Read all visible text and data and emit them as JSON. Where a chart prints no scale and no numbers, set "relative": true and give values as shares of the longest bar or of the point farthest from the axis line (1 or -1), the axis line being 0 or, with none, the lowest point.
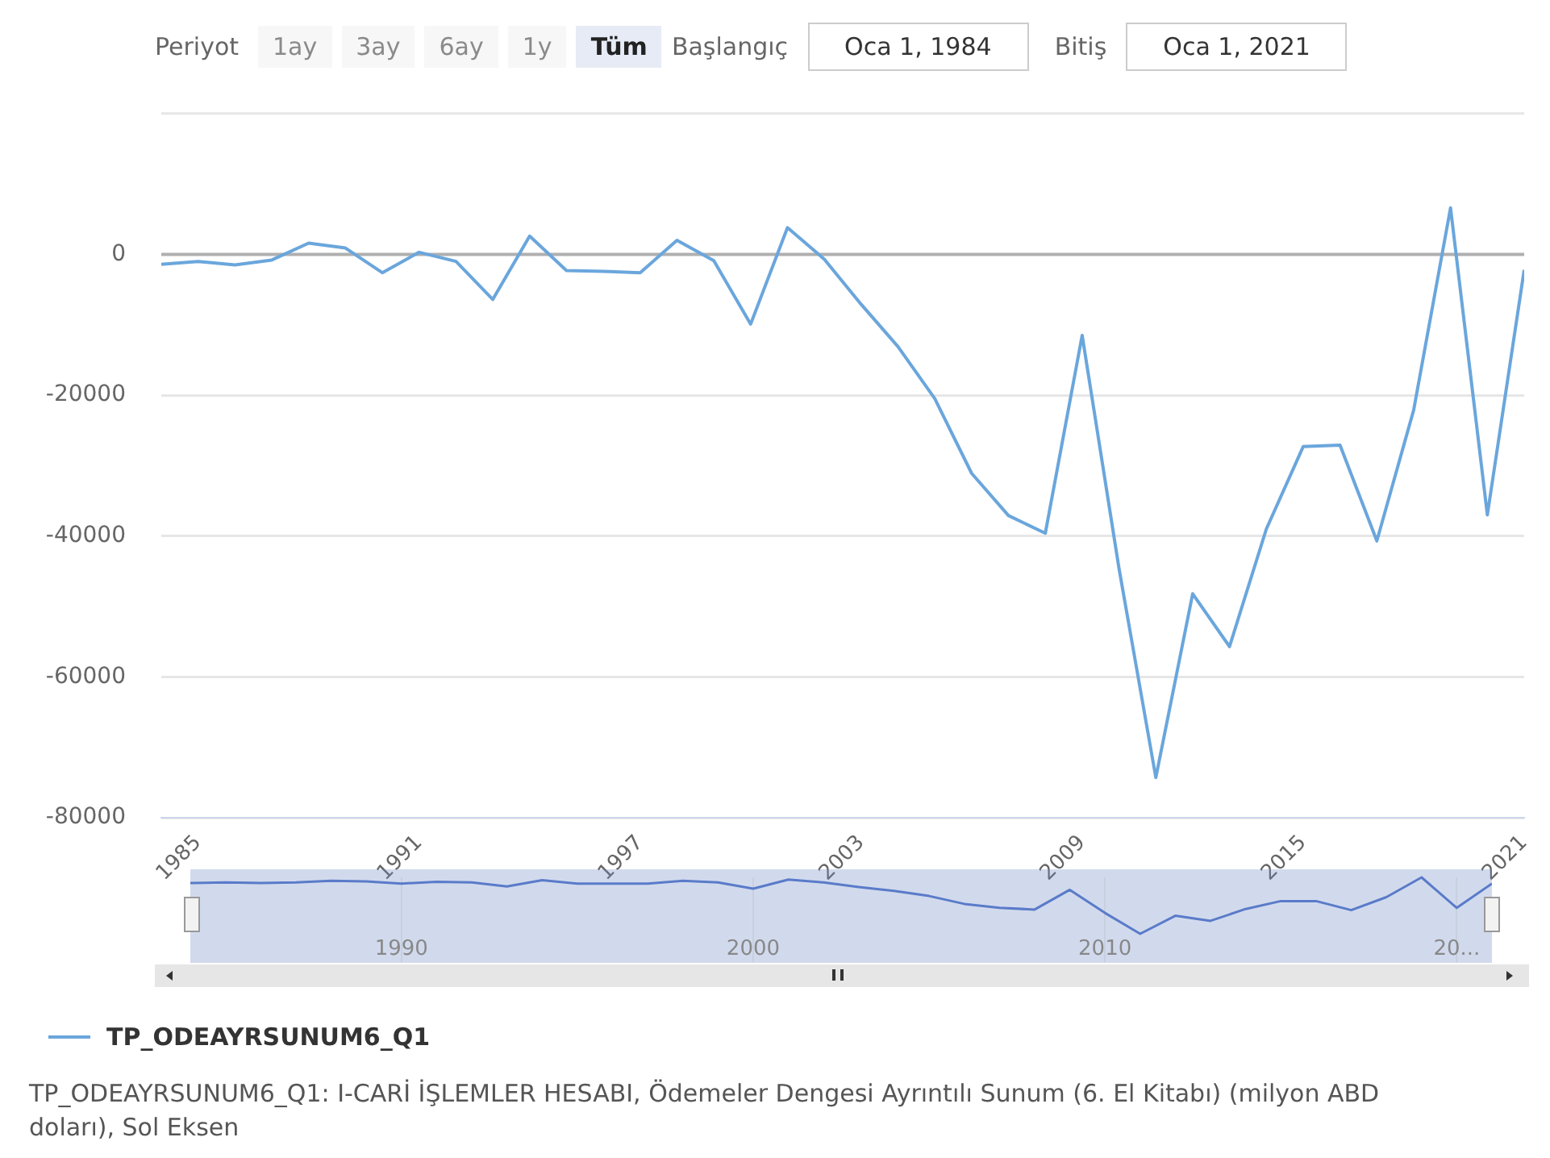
{
  "chart_data": [
    {
      "type": "line",
      "x": [
        1984,
        1985,
        1986,
        1987,
        1988,
        1989,
        1990,
        1991,
        1992,
        1993,
        1994,
        1995,
        1996,
        1997,
        1998,
        1999,
        2000,
        2001,
        2002,
        2003,
        2004,
        2005,
        2006,
        2007,
        2008,
        2009,
        2010,
        2011,
        2012,
        2013,
        2014,
        2015,
        2016,
        2017,
        2018,
        2019,
        2020,
        2021
      ],
      "series": [
        {
          "name": "TP_ODEAYRSUNUM6_Q1",
          "color": "#6aa6dc",
          "values": [
            -1400,
            -1000,
            -1500,
            -800,
            1600,
            900,
            -2600,
            300,
            -1000,
            -6400,
            2600,
            -2300,
            -2400,
            -2600,
            2000,
            -900,
            -9900,
            3800,
            -700,
            -7100,
            -13100,
            -20500,
            -31100,
            -37100,
            -39600,
            -11500,
            -44600,
            -74300,
            -48200,
            -55700,
            -39000,
            -27300,
            -27100,
            -40700,
            -22100,
            6600,
            -37000,
            -2200
          ]
        }
      ],
      "xlim": [
        1984,
        2021
      ],
      "xticks": [
        1985,
        1991,
        1997,
        2003,
        2009,
        2015,
        2021
      ],
      "ylim": [
        -80000,
        20000
      ],
      "yticks": [
        -80000,
        -60000,
        -40000,
        -20000,
        0
      ],
      "grid": "y",
      "legend": "bottom",
      "ref_lines": [
        {
          "axis": "y",
          "value": 0,
          "label": null,
          "color": "#b0b0b0"
        }
      ],
      "annotations": [
        "Periyot",
        "1ay",
        "3ay",
        "6ay",
        "1y",
        "Tüm",
        "Başlangıç",
        "Oca 1, 1984",
        "Bitiş",
        "Oca 1, 2021",
        "TP_ODEAYRSUNUM6_Q1: I-CARİ İŞLEMLER HESABI, Ödemeler Dengesi Ayrıntılı Sunum (6. El Kitabı) (milyon ABD doları), Sol Eksen"
      ]
    },
    {
      "type": "line",
      "x": [
        1984,
        1985,
        1986,
        1987,
        1988,
        1989,
        1990,
        1991,
        1992,
        1993,
        1994,
        1995,
        1996,
        1997,
        1998,
        1999,
        2000,
        2001,
        2002,
        2003,
        2004,
        2005,
        2006,
        2007,
        2008,
        2009,
        2010,
        2011,
        2012,
        2013,
        2014,
        2015,
        2016,
        2017,
        2018,
        2019,
        2020,
        2021
      ],
      "values": [
        0.9,
        0.91,
        0.9,
        0.91,
        0.94,
        0.93,
        0.89,
        0.92,
        0.91,
        0.84,
        0.95,
        0.89,
        0.89,
        0.89,
        0.94,
        0.91,
        0.8,
        0.96,
        0.91,
        0.83,
        0.76,
        0.67,
        0.53,
        0.46,
        0.43,
        0.78,
        0.37,
        0,
        0.32,
        0.23,
        0.44,
        0.58,
        0.58,
        0.42,
        0.65,
        1,
        0.46,
        0.89
      ],
      "relative": true,
      "color": "#5a7bc9",
      "xlim": [
        1984,
        2021
      ],
      "xticks": [
        1990,
        2000,
        2010,
        {
          "value": 2020,
          "label": "20..."
        }
      ],
      "grid": "x"
    }
  ]
}
